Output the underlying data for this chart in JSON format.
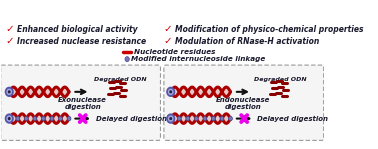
{
  "background_color": "#ffffff",
  "text_color": "#1a1a2e",
  "dna_color": "#aa0000",
  "dna_lw": 2.2,
  "dna_amplitude": 0.032,
  "dna_n_cycles": 3.5,
  "mod_circle_color": "#8888cc",
  "mod_circle_edge": "#444488",
  "endcap_outer": "#5555aa",
  "endcap_inner": "#aaaadd",
  "endcap_dot": "#222244",
  "arrow_color": "#111111",
  "block_color": "#ee00ee",
  "degraded_color": "#880000",
  "check_color": "#cc0000",
  "legend_circle_color": "#7777bb",
  "legend_dash_color": "#cc0000",
  "left_label1": "Exonuclease\ndigestion",
  "left_label2": "Delayed digestion",
  "right_label1": "Endonuclease\ndigestion",
  "right_label2": "Delayed digestion",
  "degraded_label": "Degraded ODN",
  "legend_title1": "Modified internucleoside linkage",
  "legend_title2": "Nucleotide residues",
  "checks": [
    "Increased nuclease resistance",
    "Enhanced biological activity",
    "Modulation of RNase-H activation",
    "Modification of physico-chemical properties"
  ],
  "font_italic_bold": 5.0,
  "font_legend": 5.2,
  "font_check": 5.5
}
